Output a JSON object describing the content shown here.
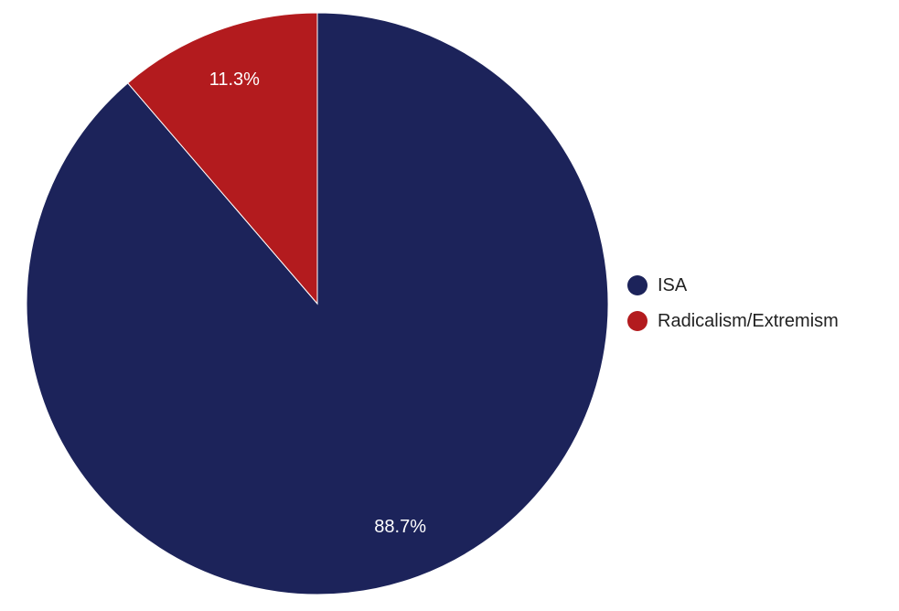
{
  "chart_data": {
    "type": "pie",
    "categories": [
      "ISA",
      "Radicalism/Extremism"
    ],
    "values": [
      88.7,
      11.3
    ],
    "value_labels": [
      "88.7%",
      "11.3%"
    ],
    "colors": [
      "#1c235a",
      "#b31b1e"
    ],
    "start": "12 o'clock, clockwise",
    "legend_placement": "right",
    "title": ""
  },
  "legend": {
    "items": [
      {
        "label": "ISA",
        "color": "#1c235a"
      },
      {
        "label": "Radicalism/Extremism",
        "color": "#b31b1e"
      }
    ]
  }
}
